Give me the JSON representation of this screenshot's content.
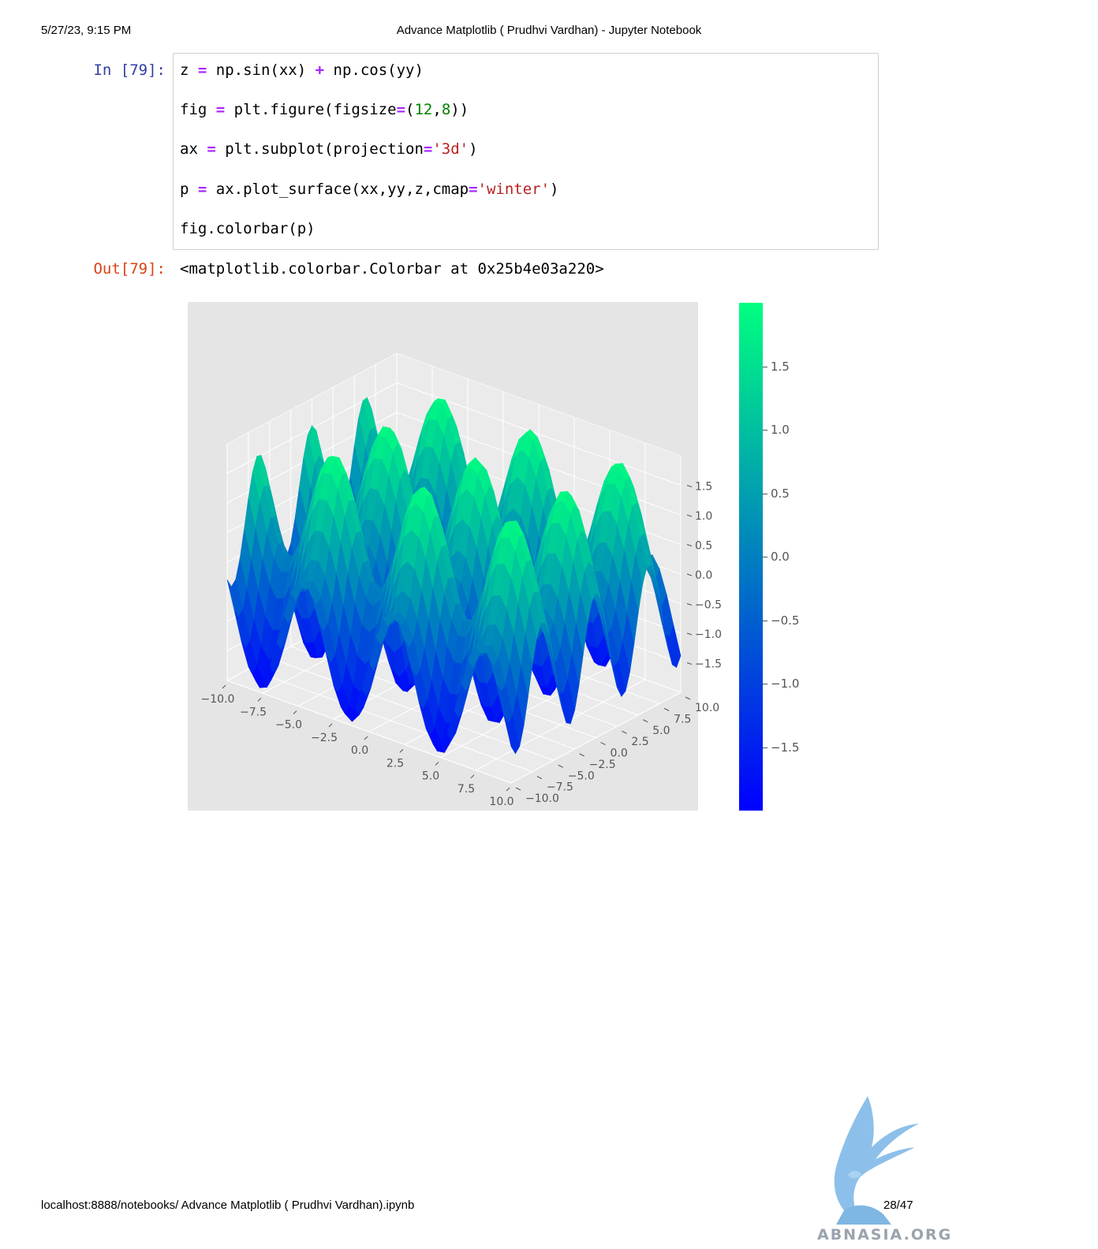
{
  "header": {
    "date": "5/27/23, 9:15 PM",
    "title": "Advance Matplotlib ( Prudhvi Vardhan) - Jupyter Notebook"
  },
  "cell": {
    "in_prompt": "In [79]:",
    "out_prompt": "Out[79]:",
    "output_text": "<matplotlib.colorbar.Colorbar at 0x25b4e03a220>"
  },
  "code": {
    "line1": {
      "a": "z ",
      "op1": "=",
      "b": " np.sin(xx) ",
      "op2": "+",
      "c": " np.cos(yy)"
    },
    "line2": {
      "a": "fig ",
      "op1": "=",
      "b": " plt.figure(figsize",
      "op2": "=",
      "c": "(",
      "n1": "12",
      "d": ",",
      "n2": "8",
      "e": "))"
    },
    "line3": {
      "a": "ax ",
      "op1": "=",
      "b": " plt.subplot(projection",
      "op2": "=",
      "s": "'3d'",
      "c": ")"
    },
    "line4": {
      "a": "p ",
      "op1": "=",
      "b": " ax.plot_surface(xx,yy,z,cmap",
      "op2": "=",
      "s": "'winter'",
      "c": ")"
    },
    "line5": {
      "a": "fig.colorbar(p)"
    }
  },
  "chart_data": {
    "type": "surface",
    "function": "z = sin(x) + cos(y)",
    "colormap": "winter",
    "colormap_colors": [
      "#0000ff",
      "#00ff80"
    ],
    "x_ticks": [
      "−10.0",
      "−7.5",
      "−5.0",
      "−2.5",
      "0.0",
      "2.5",
      "5.0",
      "7.5",
      "10.0"
    ],
    "y_ticks": [
      "−10.0",
      "−7.5",
      "−5.0",
      "−2.5",
      "0.0",
      "2.5",
      "5.0",
      "7.5",
      "10.0"
    ],
    "z_ticks": [
      "−1.5",
      "−1.0",
      "−0.5",
      "0.0",
      "0.5",
      "1.0",
      "1.5"
    ],
    "xlim": [
      -10,
      10
    ],
    "ylim": [
      -10,
      10
    ],
    "zlim": [
      -2,
      2
    ],
    "colorbar_ticks": [
      "1.5",
      "1.0",
      "0.5",
      "0.0",
      "−0.5",
      "−1.0",
      "−1.5"
    ],
    "colorbar_range": [
      -2,
      2
    ],
    "grid": true
  },
  "footer": {
    "url": "localhost:8888/notebooks/ Advance Matplotlib ( Prudhvi Vardhan).ipynb",
    "page": "28/47"
  },
  "watermark": {
    "text": "ABNASIA.ORG"
  }
}
